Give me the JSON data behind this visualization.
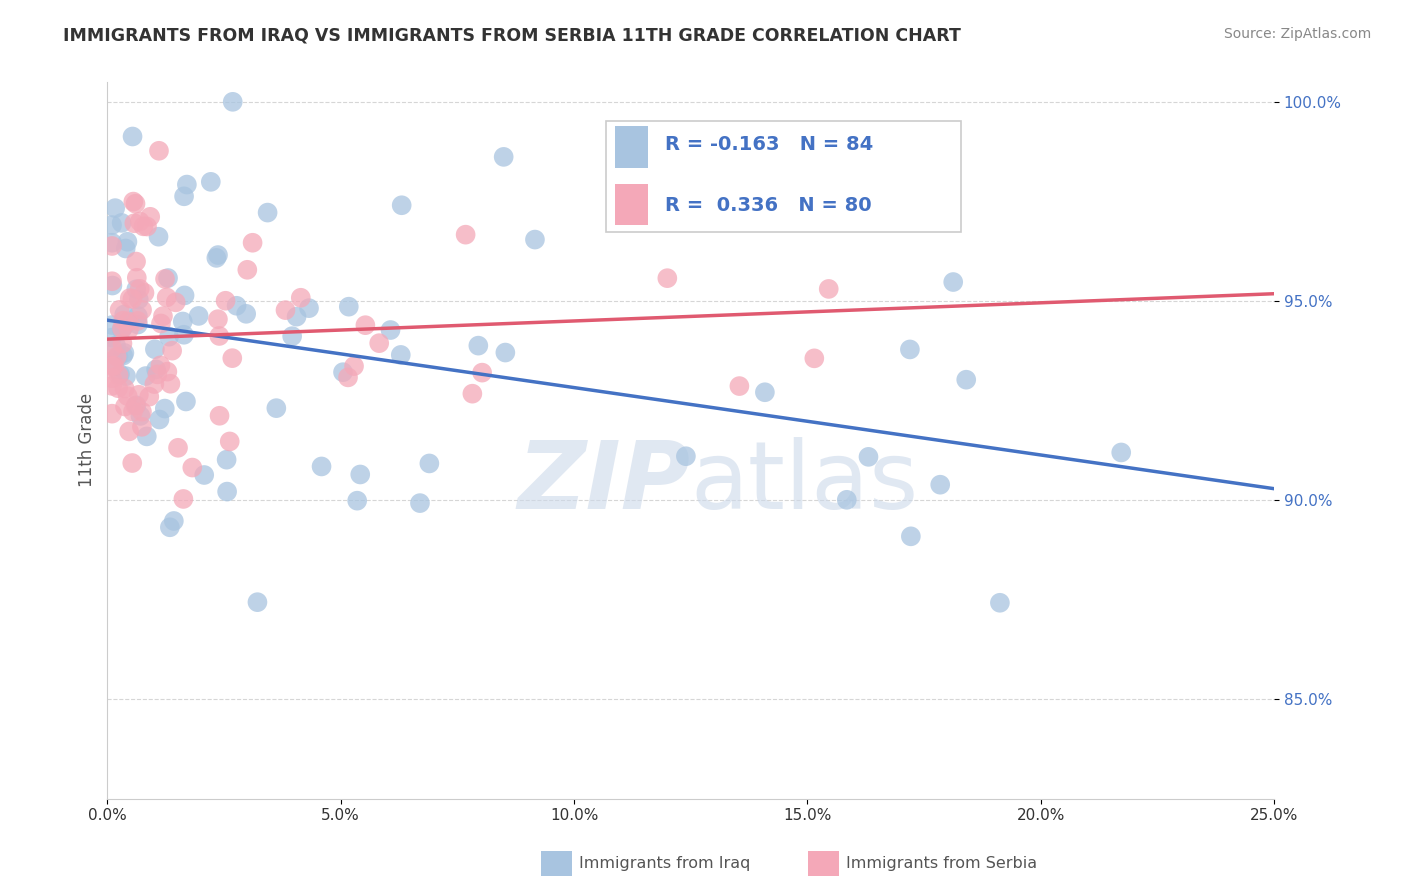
{
  "title": "IMMIGRANTS FROM IRAQ VS IMMIGRANTS FROM SERBIA 11TH GRADE CORRELATION CHART",
  "source_text": "Source: ZipAtlas.com",
  "xlabel_iraq": "Immigrants from Iraq",
  "xlabel_serbia": "Immigrants from Serbia",
  "ylabel": "11th Grade",
  "xlim": [
    0.0,
    0.25
  ],
  "ylim": [
    0.825,
    1.005
  ],
  "xticks": [
    0.0,
    0.05,
    0.1,
    0.15,
    0.2,
    0.25
  ],
  "xtick_labels": [
    "0.0%",
    "5.0%",
    "10.0%",
    "15.0%",
    "20.0%",
    "25.0%"
  ],
  "yticks": [
    0.85,
    0.9,
    0.95,
    1.0
  ],
  "ytick_labels": [
    "85.0%",
    "90.0%",
    "95.0%",
    "100.0%"
  ],
  "iraq_color": "#a8c4e0",
  "serbia_color": "#f4a8b8",
  "iraq_line_color": "#4472c4",
  "serbia_line_color": "#e05a70",
  "iraq_R": -0.163,
  "iraq_N": 84,
  "serbia_R": 0.336,
  "serbia_N": 80,
  "watermark_color": "#ccd9ea",
  "background_color": "#ffffff",
  "grid_color": "#cccccc",
  "title_color": "#333333",
  "source_color": "#888888",
  "ylabel_color": "#555555",
  "xtick_color": "#333333",
  "ytick_color": "#4472c4",
  "iraq_seed": 42,
  "serbia_seed": 7
}
